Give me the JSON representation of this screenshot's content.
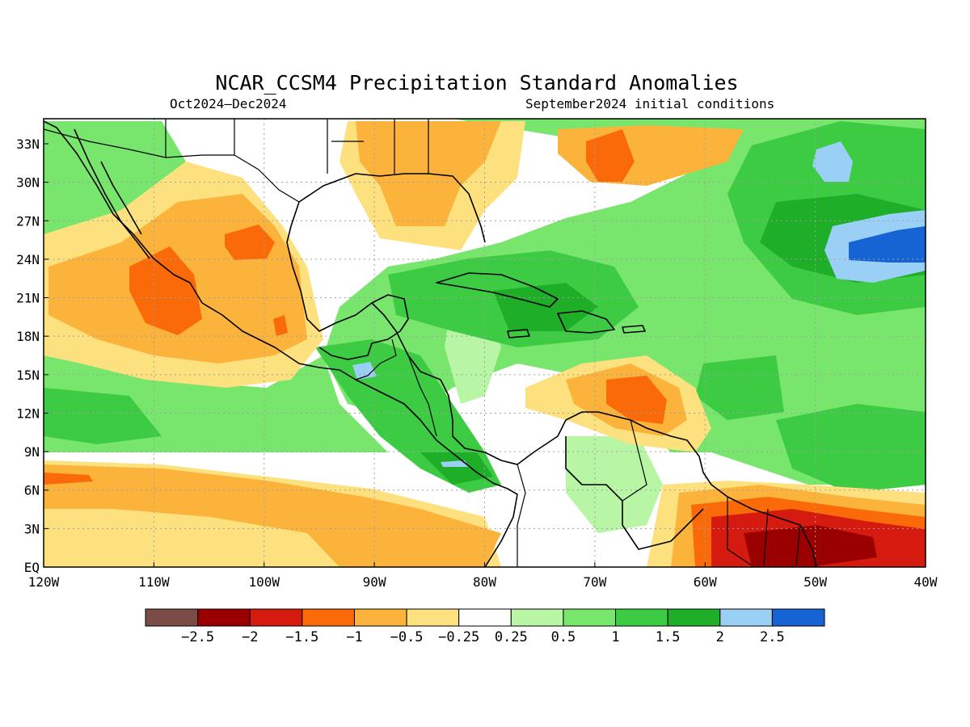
{
  "map": {
    "title": "NCAR_CCSM4 Precipitation Standard Anomalies",
    "period": "Oct2024–Dec2024",
    "init": "September2024 initial conditions",
    "lat_labels": [
      "33N",
      "30N",
      "27N",
      "24N",
      "21N",
      "18N",
      "15N",
      "12N",
      "9N",
      "6N",
      "3N",
      "EQ"
    ],
    "lon_labels": [
      "120W",
      "110W",
      "100W",
      "90W",
      "80W",
      "70W",
      "60W",
      "50W",
      "40W"
    ]
  },
  "legend": {
    "labels": [
      "−2.5",
      "−2",
      "−1.5",
      "−1",
      "−0.5",
      "−0.25",
      "0.25",
      "0.5",
      "1",
      "1.5",
      "2",
      "2.5"
    ],
    "colors": [
      "#7a4c45",
      "#9b0000",
      "#d51a10",
      "#fb6a09",
      "#fbb33b",
      "#fde17f",
      "#ffffff",
      "#b8f5a4",
      "#78e66c",
      "#3ccb43",
      "#1fae28",
      "#9ad0f5",
      "#1663d4"
    ]
  }
}
